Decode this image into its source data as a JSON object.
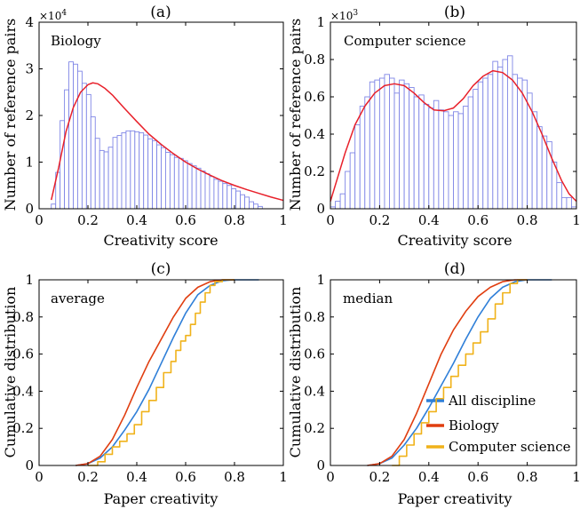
{
  "chart_data": [
    {
      "id": "a",
      "type": "bar",
      "title": "(a)",
      "annotation": "Biology",
      "xlabel": "Creativity score",
      "ylabel": "Number of reference pairs",
      "multiplier_base": "×10",
      "multiplier_exp": "4",
      "xlim": [
        0,
        1
      ],
      "ylim": [
        0,
        40000
      ],
      "xticks": [
        0,
        0.2,
        0.4,
        0.6,
        0.8,
        1
      ],
      "xtick_labels": [
        "0",
        "0.2",
        "0.4",
        "0.6",
        "0.8",
        "1"
      ],
      "yticks": [
        0,
        10000,
        20000,
        30000,
        40000
      ],
      "ytick_labels": [
        "0",
        "1",
        "2",
        "3",
        "4"
      ],
      "bin_start": 0.05,
      "bin_width": 0.018,
      "values": [
        1000,
        7800,
        18900,
        25500,
        31500,
        31000,
        29500,
        26900,
        24500,
        19700,
        15100,
        12500,
        12200,
        13200,
        15300,
        15700,
        16300,
        16700,
        16700,
        16500,
        16300,
        15800,
        15000,
        14600,
        13700,
        13100,
        12100,
        11600,
        11000,
        10800,
        10300,
        9700,
        9200,
        8700,
        8100,
        7500,
        6900,
        6300,
        5900,
        5400,
        5000,
        4300,
        3800,
        3000,
        2500,
        1500,
        1000,
        500
      ],
      "fit": {
        "name": "fit",
        "color": "#e8202a",
        "x": [
          0.05,
          0.08,
          0.11,
          0.14,
          0.17,
          0.2,
          0.22,
          0.24,
          0.27,
          0.3,
          0.35,
          0.4,
          0.45,
          0.5,
          0.55,
          0.6,
          0.65,
          0.7,
          0.75,
          0.8,
          0.85,
          0.9,
          0.95,
          1.0
        ],
        "y": [
          1900,
          8800,
          16500,
          21700,
          25000,
          26600,
          27000,
          26800,
          25800,
          24400,
          21500,
          18700,
          16000,
          13800,
          11800,
          10000,
          8500,
          7200,
          6000,
          5000,
          4100,
          3300,
          2500,
          1800
        ]
      }
    },
    {
      "id": "b",
      "type": "bar",
      "title": "(b)",
      "annotation": "Computer science",
      "xlabel": "Creativity score",
      "ylabel": "Number of reference pairs",
      "multiplier_base": "×10",
      "multiplier_exp": "3",
      "xlim": [
        0,
        1
      ],
      "ylim": [
        0,
        1000
      ],
      "xticks": [
        0,
        0.2,
        0.4,
        0.6,
        0.8,
        1
      ],
      "xtick_labels": [
        "0",
        "0.2",
        "0.4",
        "0.6",
        "0.8",
        "1"
      ],
      "yticks": [
        0,
        200,
        400,
        600,
        800,
        1000
      ],
      "ytick_labels": [
        "0",
        "0.2",
        "0.4",
        "0.6",
        "0.8",
        "1"
      ],
      "bin_start": 0,
      "bin_width": 0.02,
      "values": [
        10,
        40,
        80,
        200,
        300,
        450,
        550,
        600,
        680,
        690,
        700,
        720,
        700,
        620,
        690,
        670,
        650,
        600,
        610,
        560,
        540,
        580,
        530,
        520,
        500,
        520,
        510,
        550,
        600,
        640,
        680,
        700,
        720,
        790,
        760,
        800,
        820,
        720,
        700,
        690,
        620,
        520,
        440,
        390,
        360,
        250,
        140,
        60,
        60,
        10
      ],
      "fit": {
        "name": "fit",
        "color": "#e8202a",
        "x": [
          0,
          0.03,
          0.06,
          0.1,
          0.14,
          0.18,
          0.22,
          0.26,
          0.3,
          0.34,
          0.38,
          0.42,
          0.46,
          0.5,
          0.54,
          0.58,
          0.62,
          0.66,
          0.7,
          0.74,
          0.78,
          0.82,
          0.86,
          0.9,
          0.94,
          0.97,
          1.0
        ],
        "y": [
          40,
          170,
          300,
          450,
          550,
          620,
          660,
          670,
          660,
          620,
          570,
          530,
          525,
          540,
          590,
          660,
          710,
          740,
          730,
          690,
          620,
          520,
          400,
          270,
          150,
          80,
          40
        ]
      }
    },
    {
      "id": "c",
      "type": "line",
      "title": "(c)",
      "annotation": "average",
      "xlabel": "Paper creativity",
      "ylabel": "Cumulative distribution",
      "xlim": [
        0,
        1
      ],
      "ylim": [
        0,
        1
      ],
      "xticks": [
        0,
        0.2,
        0.4,
        0.6,
        0.8,
        1
      ],
      "xtick_labels": [
        "0",
        "0.2",
        "0.4",
        "0.6",
        "0.8",
        "1"
      ],
      "yticks": [
        0,
        0.2,
        0.4,
        0.6,
        0.8,
        1
      ],
      "ytick_labels": [
        "0",
        "0.2",
        "0.4",
        "0.6",
        "0.8",
        "1"
      ],
      "series": [
        {
          "name": "All discipline",
          "color": "#2f7fd8",
          "step": false,
          "x": [
            0.15,
            0.2,
            0.25,
            0.3,
            0.35,
            0.4,
            0.45,
            0.5,
            0.55,
            0.6,
            0.65,
            0.7,
            0.75,
            0.8,
            0.85,
            0.9
          ],
          "y": [
            0,
            0.01,
            0.04,
            0.1,
            0.19,
            0.29,
            0.41,
            0.55,
            0.69,
            0.82,
            0.92,
            0.97,
            0.995,
            1,
            1,
            1
          ]
        },
        {
          "name": "Biology",
          "color": "#e03e10",
          "step": false,
          "x": [
            0.15,
            0.2,
            0.25,
            0.3,
            0.35,
            0.4,
            0.45,
            0.5,
            0.55,
            0.6,
            0.65,
            0.7,
            0.75,
            0.8
          ],
          "y": [
            0,
            0.01,
            0.05,
            0.14,
            0.27,
            0.42,
            0.56,
            0.68,
            0.8,
            0.9,
            0.96,
            0.99,
            1,
            1
          ]
        },
        {
          "name": "Computer science",
          "color": "#f0b21a",
          "step": true,
          "x": [
            0.2,
            0.24,
            0.27,
            0.3,
            0.33,
            0.36,
            0.39,
            0.42,
            0.45,
            0.48,
            0.51,
            0.54,
            0.56,
            0.58,
            0.6,
            0.62,
            0.64,
            0.66,
            0.68,
            0.7,
            0.72,
            0.75,
            0.8
          ],
          "y": [
            0,
            0.02,
            0.06,
            0.1,
            0.13,
            0.17,
            0.22,
            0.29,
            0.35,
            0.42,
            0.5,
            0.56,
            0.62,
            0.67,
            0.7,
            0.76,
            0.82,
            0.88,
            0.93,
            0.97,
            0.99,
            1,
            1
          ]
        }
      ]
    },
    {
      "id": "d",
      "type": "line",
      "title": "(d)",
      "annotation": "median",
      "xlabel": "Paper creativity",
      "ylabel": "Cumulative distribution",
      "xlim": [
        0,
        1
      ],
      "ylim": [
        0,
        1
      ],
      "xticks": [
        0,
        0.2,
        0.4,
        0.6,
        0.8,
        1
      ],
      "xtick_labels": [
        "0",
        "0.2",
        "0.4",
        "0.6",
        "0.8",
        "1"
      ],
      "yticks": [
        0,
        0.2,
        0.4,
        0.6,
        0.8,
        1
      ],
      "ytick_labels": [
        "0",
        "0.2",
        "0.4",
        "0.6",
        "0.8",
        "1"
      ],
      "legend": "lower-right",
      "series": [
        {
          "name": "All discipline",
          "color": "#2f7fd8",
          "step": false,
          "x": [
            0.15,
            0.2,
            0.25,
            0.3,
            0.35,
            0.4,
            0.45,
            0.5,
            0.55,
            0.6,
            0.65,
            0.7,
            0.75,
            0.8,
            0.85,
            0.9
          ],
          "y": [
            0,
            0.01,
            0.04,
            0.11,
            0.2,
            0.31,
            0.43,
            0.55,
            0.68,
            0.8,
            0.9,
            0.96,
            0.99,
            1,
            1,
            1
          ]
        },
        {
          "name": "Biology",
          "color": "#e03e10",
          "step": false,
          "x": [
            0.15,
            0.2,
            0.25,
            0.3,
            0.35,
            0.4,
            0.45,
            0.5,
            0.55,
            0.6,
            0.65,
            0.7,
            0.75,
            0.8
          ],
          "y": [
            0,
            0.01,
            0.05,
            0.14,
            0.28,
            0.44,
            0.6,
            0.73,
            0.83,
            0.91,
            0.96,
            0.99,
            1,
            1
          ]
        },
        {
          "name": "Computer science",
          "color": "#f0b21a",
          "step": true,
          "x": [
            0.25,
            0.28,
            0.31,
            0.34,
            0.37,
            0.4,
            0.43,
            0.46,
            0.49,
            0.52,
            0.55,
            0.58,
            0.61,
            0.64,
            0.67,
            0.7,
            0.73,
            0.76,
            0.8
          ],
          "y": [
            0,
            0.05,
            0.11,
            0.17,
            0.23,
            0.29,
            0.36,
            0.42,
            0.48,
            0.54,
            0.6,
            0.66,
            0.72,
            0.79,
            0.87,
            0.93,
            0.98,
            1,
            1
          ]
        }
      ]
    }
  ]
}
